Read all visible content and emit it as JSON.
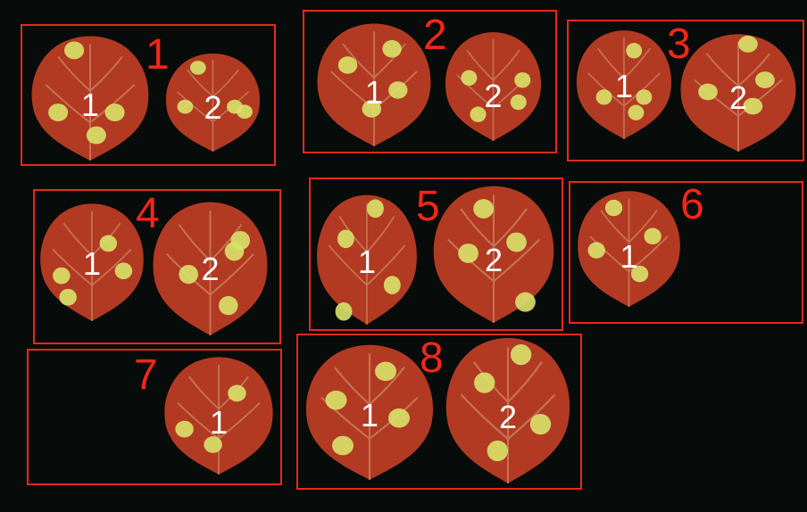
{
  "colors": {
    "background": "#070b09",
    "frame": "#e8281e",
    "group_number": "#f2261a",
    "leaf_fill": "#b23a22",
    "leaf_vein": "#d08a6a",
    "lesion": "#d8e26a",
    "leaf_label": "#ffffff"
  },
  "groups": [
    {
      "number": "1",
      "leaves": [
        {
          "label": "1"
        },
        {
          "label": "2"
        }
      ]
    },
    {
      "number": "2",
      "leaves": [
        {
          "label": "1"
        },
        {
          "label": "2"
        }
      ]
    },
    {
      "number": "3",
      "leaves": [
        {
          "label": "1"
        },
        {
          "label": "2"
        }
      ]
    },
    {
      "number": "4",
      "leaves": [
        {
          "label": "1"
        },
        {
          "label": "2"
        }
      ]
    },
    {
      "number": "5",
      "leaves": [
        {
          "label": "1"
        },
        {
          "label": "2"
        }
      ]
    },
    {
      "number": "6",
      "leaves": [
        {
          "label": "1"
        }
      ]
    },
    {
      "number": "7",
      "leaves": [
        {
          "label": "1"
        }
      ]
    },
    {
      "number": "8",
      "leaves": [
        {
          "label": "1"
        },
        {
          "label": "2"
        }
      ]
    }
  ]
}
